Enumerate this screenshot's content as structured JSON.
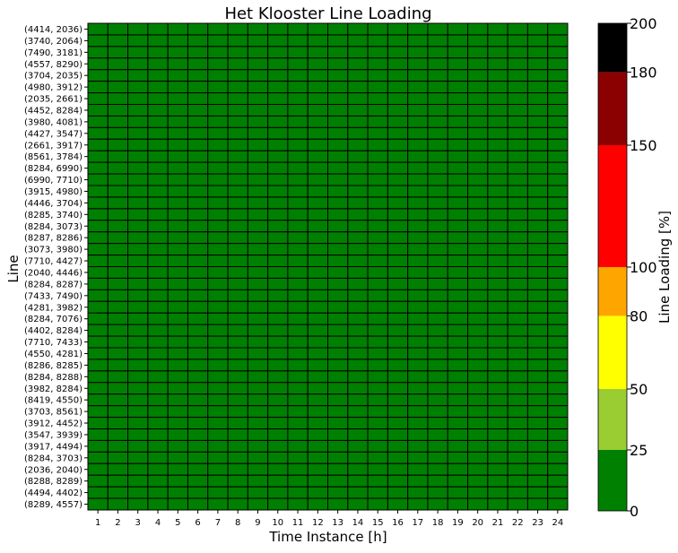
{
  "chart_data": {
    "type": "heatmap",
    "title": "Het Klooster Line Loading",
    "xlabel": "Time Instance [h]",
    "ylabel": "Line",
    "x": [
      "1",
      "2",
      "3",
      "4",
      "5",
      "6",
      "7",
      "8",
      "9",
      "10",
      "11",
      "12",
      "13",
      "14",
      "15",
      "16",
      "17",
      "18",
      "19",
      "20",
      "21",
      "22",
      "23",
      "24"
    ],
    "y": [
      "(4414, 2036)",
      "(3740, 2064)",
      "(7490, 3181)",
      "(4557, 8290)",
      "(3704, 2035)",
      "(4980, 3912)",
      "(2035, 2661)",
      "(4452, 8284)",
      "(3980, 4081)",
      "(4427, 3547)",
      "(2661, 3917)",
      "(8561, 3784)",
      "(8284, 6990)",
      "(6990, 7710)",
      "(3915, 4980)",
      "(4446, 3704)",
      "(8285, 3740)",
      "(8284, 3073)",
      "(8287, 8286)",
      "(3073, 3980)",
      "(7710, 4427)",
      "(2040, 4446)",
      "(8284, 8287)",
      "(7433, 7490)",
      "(4281, 3982)",
      "(8284, 7076)",
      "(4402, 8284)",
      "(7710, 7433)",
      "(4550, 4281)",
      "(8286, 8285)",
      "(8284, 8288)",
      "(3982, 8284)",
      "(8419, 4550)",
      "(3703, 8561)",
      "(3912, 4452)",
      "(3547, 3939)",
      "(3917, 4494)",
      "(8284, 3703)",
      "(2036, 2040)",
      "(8288, 8289)",
      "(4494, 4402)",
      "(8289, 4557)"
    ],
    "cell_value_range": [
      0,
      25
    ],
    "colorbar": {
      "label": "Line Loading [%]",
      "range": [
        0,
        200
      ],
      "ticks": [
        "0",
        "25",
        "50",
        "80",
        "100",
        "150",
        "180",
        "200"
      ],
      "bands": [
        {
          "from": 0,
          "to": 25,
          "color": "#008000"
        },
        {
          "from": 25,
          "to": 50,
          "color": "#9acd32"
        },
        {
          "from": 50,
          "to": 80,
          "color": "#ffff00"
        },
        {
          "from": 80,
          "to": 100,
          "color": "#ffa500"
        },
        {
          "from": 100,
          "to": 150,
          "color": "#ff0000"
        },
        {
          "from": 150,
          "to": 180,
          "color": "#8b0000"
        },
        {
          "from": 180,
          "to": 200,
          "color": "#000000"
        }
      ]
    },
    "cell_border_color": "#000000"
  }
}
